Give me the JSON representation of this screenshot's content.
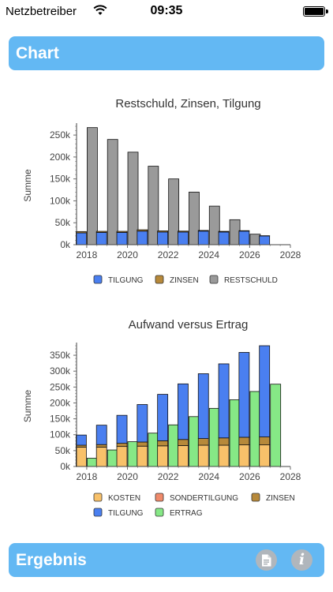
{
  "status": {
    "carrier": "Netzbetreiber",
    "time": "09:35"
  },
  "header": {
    "title": "Chart"
  },
  "footer": {
    "title": "Ergebnis",
    "doc_icon": "document-icon",
    "info_icon": "info-icon",
    "info_glyph": "i"
  },
  "colors": {
    "header_bg": "#63b8f3",
    "tilgung": "#4a7ff0",
    "zinsen": "#b7893a",
    "restschuld": "#9a9a9a",
    "kosten": "#f8c16a",
    "sondertilgung": "#f08a6a",
    "ertrag": "#86e886"
  },
  "chart_data": [
    {
      "type": "bar",
      "title": "Restschuld, Zinsen, Tilgung",
      "ylabel": "Summe",
      "xlabel": "",
      "x_ticks": [
        "2018",
        "2020",
        "2022",
        "2024",
        "2026",
        "2028"
      ],
      "y_ticks": [
        "0k",
        "50k",
        "100k",
        "150k",
        "200k",
        "250k"
      ],
      "ylim": [
        0,
        270000
      ],
      "xlim": [
        2017.5,
        2028
      ],
      "legend_position": "bottom",
      "categories": [
        2018,
        2019,
        2020,
        2021,
        2022,
        2023,
        2024,
        2025,
        2026,
        2027
      ],
      "groups": [
        {
          "name": "TILGUNG+ZINSEN",
          "stack": [
            {
              "name": "TILGUNG",
              "values": [
                27000,
                28000,
                28000,
                31000,
                29000,
                29000,
                31000,
                29000,
                31000,
                20000
              ]
            },
            {
              "name": "ZINSEN",
              "values": [
                3000,
                2500,
                2500,
                3000,
                2500,
                2000,
                1500,
                1500,
                1000,
                500
              ]
            }
          ]
        },
        {
          "name": "RESTSCHULD",
          "stack": [
            {
              "name": "RESTSCHULD",
              "values": [
                267000,
                240000,
                211000,
                179000,
                150000,
                120000,
                88000,
                57000,
                24000,
                0
              ]
            }
          ]
        }
      ],
      "legend": [
        {
          "name": "TILGUNG",
          "color": "#4a7ff0"
        },
        {
          "name": "ZINSEN",
          "color": "#b7893a"
        },
        {
          "name": "RESTSCHULD",
          "color": "#9a9a9a"
        }
      ]
    },
    {
      "type": "bar",
      "title": "Aufwand versus Ertrag",
      "ylabel": "Summe",
      "xlabel": "",
      "x_ticks": [
        "2018",
        "2020",
        "2022",
        "2024",
        "2026",
        "2028"
      ],
      "y_ticks": [
        "0k",
        "50k",
        "100k",
        "150k",
        "200k",
        "250k",
        "300k",
        "350k"
      ],
      "ylim": [
        0,
        380000
      ],
      "xlim": [
        2017.5,
        2028
      ],
      "legend_position": "bottom",
      "categories": [
        2018,
        2019,
        2020,
        2021,
        2022,
        2023,
        2024,
        2025,
        2026,
        2027
      ],
      "groups": [
        {
          "name": "AUFWAND",
          "stack": [
            {
              "name": "KOSTEN",
              "values": [
                61000,
                61000,
                63000,
                64000,
                65000,
                66000,
                67000,
                67000,
                68000,
                68000
              ]
            },
            {
              "name": "SONDERTILGUNG",
              "values": [
                0,
                0,
                0,
                0,
                0,
                0,
                0,
                0,
                0,
                0
              ]
            },
            {
              "name": "ZINSEN",
              "values": [
                6000,
                8000,
                10000,
                13000,
                16000,
                19000,
                21000,
                23000,
                24000,
                25000
              ]
            },
            {
              "name": "TILGUNG",
              "values": [
                32000,
                61000,
                88000,
                118000,
                146000,
                175000,
                204000,
                233000,
                267000,
                287000
              ]
            }
          ]
        },
        {
          "name": "ERTRAG",
          "stack": [
            {
              "name": "ERTRAG",
              "values": [
                26000,
                52000,
                78000,
                105000,
                131000,
                157000,
                183000,
                210000,
                236000,
                259000
              ]
            }
          ]
        }
      ],
      "legend": [
        {
          "name": "KOSTEN",
          "color": "#f8c16a"
        },
        {
          "name": "SONDERTILGUNG",
          "color": "#f08a6a"
        },
        {
          "name": "ZINSEN",
          "color": "#b7893a"
        },
        {
          "name": "TILGUNG",
          "color": "#4a7ff0"
        },
        {
          "name": "ERTRAG",
          "color": "#86e886"
        }
      ]
    }
  ]
}
